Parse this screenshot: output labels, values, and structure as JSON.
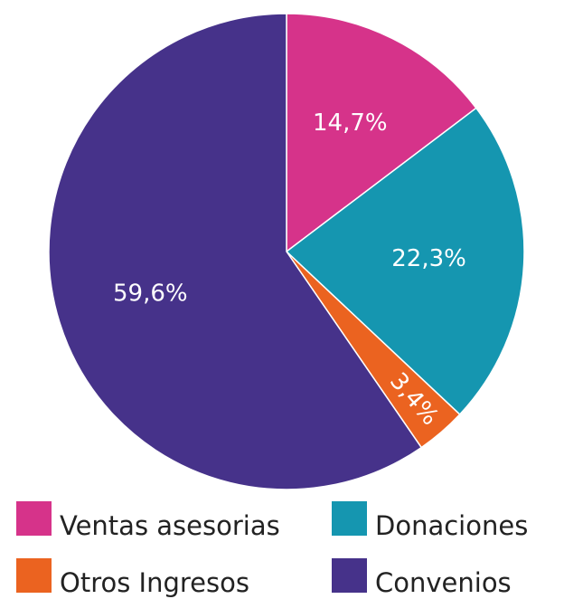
{
  "chart_data": {
    "type": "pie",
    "categories": [
      "Ventas asesorias",
      "Donaciones",
      "Otros Ingresos",
      "Convenios"
    ],
    "values": [
      14.7,
      22.3,
      3.4,
      59.6
    ],
    "value_labels": [
      "14,7%",
      "22,3%",
      "3,4%",
      "59,6%"
    ],
    "colors": [
      "#d6338a",
      "#1596b0",
      "#eb6320",
      "#46328a"
    ],
    "legend": "bottom"
  }
}
